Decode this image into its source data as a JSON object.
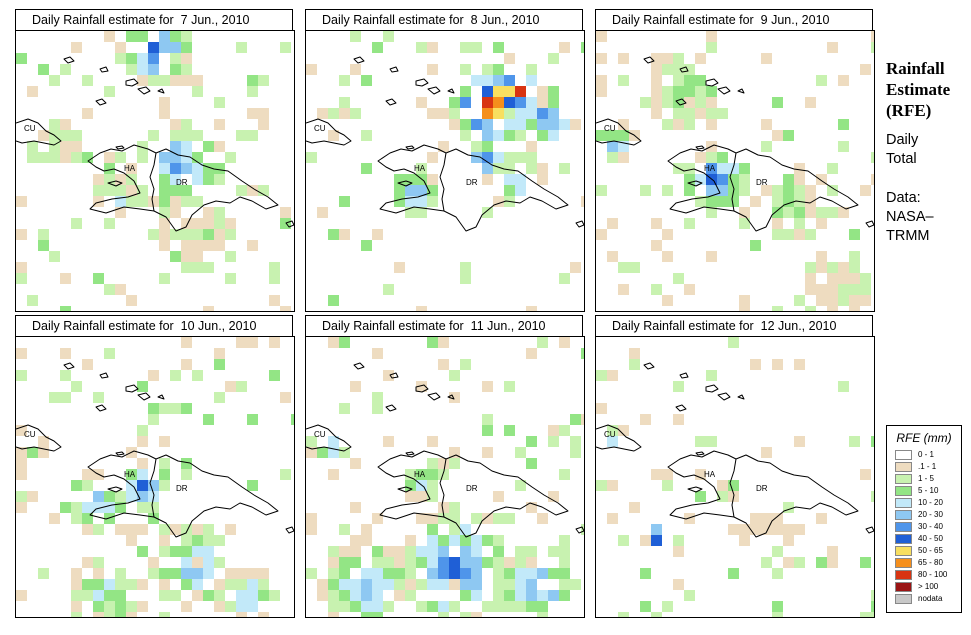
{
  "title_prefix": "Daily Rainfall estimate for",
  "panels": [
    {
      "date": "7 Jun., 2010",
      "scene": "p7"
    },
    {
      "date": "8 Jun., 2010",
      "scene": "p8"
    },
    {
      "date": "9 Jun., 2010",
      "scene": "p9"
    },
    {
      "date": "10 Jun., 2010",
      "scene": "p10"
    },
    {
      "date": "11 Jun., 2010",
      "scene": "p11"
    },
    {
      "date": "12 Jun., 2010",
      "scene": "p12"
    }
  ],
  "map_labels": {
    "cuba": "CU",
    "haiti": "HA",
    "dominican_republic": "DR"
  },
  "sidebar": {
    "title_line1": "Rainfall",
    "title_line2": "Estimate",
    "title_line3": "(RFE)",
    "period_line1": "Daily",
    "period_line2": "Total",
    "source_line1": "Data:",
    "source_line2": "NASA–",
    "source_line3": "TRMM"
  },
  "legend": {
    "title": "RFE (mm)",
    "classes": [
      {
        "label": "0 - 1",
        "color": "#ffffff"
      },
      {
        "label": ".1 - 1",
        "color": "#eedcc0"
      },
      {
        "label": "1 - 5",
        "color": "#c8f2b0"
      },
      {
        "label": "5 - 10",
        "color": "#93e585"
      },
      {
        "label": "10 - 20",
        "color": "#c2e9f9"
      },
      {
        "label": "20 - 30",
        "color": "#8ec8f2"
      },
      {
        "label": "30 - 40",
        "color": "#4f95ea"
      },
      {
        "label": "40 - 50",
        "color": "#1f5fd6"
      },
      {
        "label": "50 - 65",
        "color": "#f8df60"
      },
      {
        "label": "65 - 80",
        "color": "#f58f1c"
      },
      {
        "label": "80 - 100",
        "color": "#d83412"
      },
      {
        "label": "> 100",
        "color": "#9a1414"
      },
      {
        "label": "nodata",
        "color": "#c8c8c8"
      }
    ]
  }
}
